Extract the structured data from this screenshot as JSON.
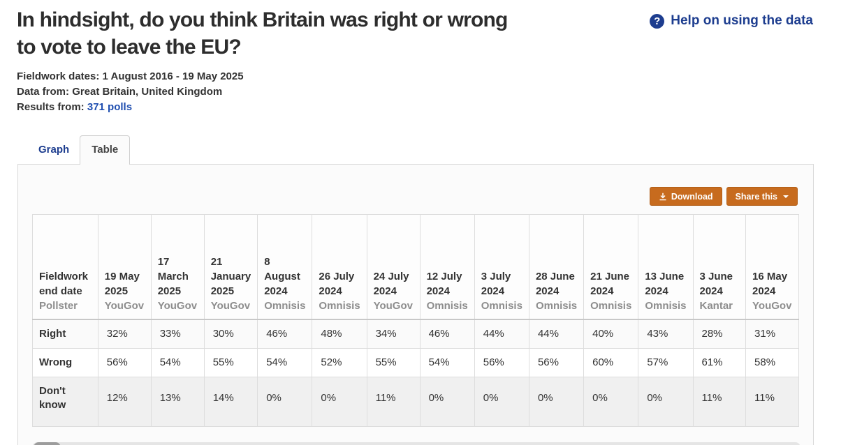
{
  "header": {
    "title_lines": [
      "In hindsight, do you think Britain was right or wrong",
      "to vote to leave the EU?"
    ],
    "help_label": "Help on using the data",
    "help_icon": "question-mark-circle"
  },
  "meta": {
    "fieldwork_label": "Fieldwork dates:",
    "fieldwork_value": "1 August 2016 - 19 May 2025",
    "datafrom_label": "Data from:",
    "datafrom_value": "Great Britain, United Kingdom",
    "results_label": "Results from:",
    "results_link": "371 polls"
  },
  "tabs": [
    {
      "label": "Graph",
      "active": false
    },
    {
      "label": "Table",
      "active": true
    }
  ],
  "toolbar": {
    "download_label": "Download",
    "download_icon": "download-arrow-icon",
    "share_label": "Share this",
    "share_icon": "caret-down-icon"
  },
  "table": {
    "corner": {
      "line1": "Fieldwork end date",
      "line2": "Pollster"
    },
    "columns": [
      {
        "date": "19 May 2025",
        "pollster": "YouGov"
      },
      {
        "date": "17 March 2025",
        "pollster": "YouGov"
      },
      {
        "date": "21 January 2025",
        "pollster": "YouGov"
      },
      {
        "date": "8 August 2024",
        "pollster": "Omnisis"
      },
      {
        "date": "26 July 2024",
        "pollster": "Omnisis"
      },
      {
        "date": "24 July 2024",
        "pollster": "YouGov"
      },
      {
        "date": "12 July 2024",
        "pollster": "Omnisis"
      },
      {
        "date": "3 July 2024",
        "pollster": "Omnisis"
      },
      {
        "date": "28 June 2024",
        "pollster": "Omnisis"
      },
      {
        "date": "21 June 2024",
        "pollster": "Omnisis"
      },
      {
        "date": "13 June 2024",
        "pollster": "Omnisis"
      },
      {
        "date": "3 June 2024",
        "pollster": "Kantar"
      },
      {
        "date": "16 May 2024",
        "pollster": "YouGov"
      }
    ],
    "rows": [
      {
        "label": "Right",
        "values": [
          "32%",
          "33%",
          "30%",
          "46%",
          "48%",
          "34%",
          "46%",
          "44%",
          "44%",
          "40%",
          "43%",
          "28%",
          "31%"
        ]
      },
      {
        "label": "Wrong",
        "values": [
          "56%",
          "54%",
          "55%",
          "54%",
          "52%",
          "55%",
          "54%",
          "56%",
          "56%",
          "60%",
          "57%",
          "61%",
          "58%"
        ]
      },
      {
        "label": "Don't know",
        "values": [
          "12%",
          "13%",
          "14%",
          "0%",
          "0%",
          "11%",
          "0%",
          "0%",
          "0%",
          "0%",
          "0%",
          "11%",
          "11%"
        ]
      }
    ]
  },
  "colors": {
    "accent_orange": "#c76b1e",
    "navy_link": "#1d3d8f",
    "blue_link": "#1f4eb0",
    "header_separator": "#c8c8c8",
    "stripe_light": "#fafafa",
    "stripe_dark": "#f0f0f0"
  }
}
